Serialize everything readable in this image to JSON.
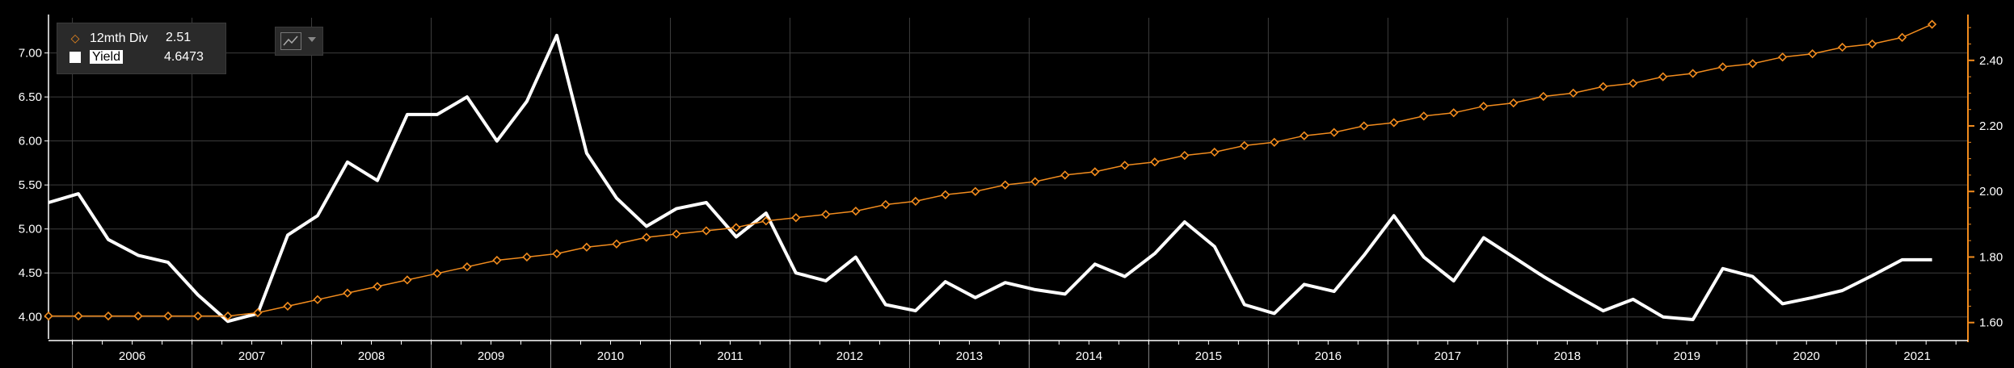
{
  "legend": {
    "div": {
      "label": "12mth Div",
      "value": "2.51"
    },
    "yield": {
      "label": "Yield",
      "value": "4.6473"
    }
  },
  "controls": {
    "icon": "line-chart-icon",
    "menu_icon": "chevron-down-icon"
  },
  "colors": {
    "div": "#f28c1e",
    "yield": "#ffffff",
    "grid": "#3d3d3d",
    "axis": "#ffffff",
    "bg": "#000000"
  },
  "chart_data": {
    "type": "line",
    "x_axis": {
      "range": [
        2005.8,
        2021.85
      ],
      "tick_labels": [
        "2006",
        "2007",
        "2008",
        "2009",
        "2010",
        "2011",
        "2012",
        "2013",
        "2014",
        "2015",
        "2016",
        "2017",
        "2018",
        "2019",
        "2020",
        "2021"
      ]
    },
    "left_axis": {
      "range": [
        3.75,
        7.4
      ],
      "ticks": [
        "4.00",
        "4.50",
        "5.00",
        "5.50",
        "6.00",
        "6.50",
        "7.00"
      ]
    },
    "right_axis": {
      "range": [
        1.55,
        2.53
      ],
      "ticks": [
        "1.60",
        "1.80",
        "2.00",
        "2.20",
        "2.40"
      ]
    },
    "grid": true,
    "legend_position": "top-left",
    "series": [
      {
        "name": "Yield",
        "axis": "left",
        "x": [
          2005.8,
          2006.05,
          2006.3,
          2006.55,
          2006.8,
          2007.05,
          2007.3,
          2007.55,
          2007.8,
          2008.05,
          2008.3,
          2008.55,
          2008.8,
          2009.05,
          2009.3,
          2009.55,
          2009.8,
          2010.05,
          2010.3,
          2010.55,
          2010.8,
          2011.05,
          2011.3,
          2011.55,
          2011.8,
          2012.05,
          2012.3,
          2012.55,
          2012.8,
          2013.05,
          2013.3,
          2013.55,
          2013.8,
          2014.05,
          2014.3,
          2014.55,
          2014.8,
          2015.05,
          2015.3,
          2015.55,
          2015.8,
          2016.05,
          2016.3,
          2016.55,
          2016.8,
          2017.05,
          2017.3,
          2017.55,
          2017.8,
          2018.05,
          2018.3,
          2018.55,
          2018.8,
          2019.05,
          2019.3,
          2019.55,
          2019.8,
          2020.05,
          2020.3,
          2020.55,
          2020.8,
          2021.05,
          2021.3,
          2021.55
        ],
        "values": [
          5.3,
          5.4,
          4.88,
          4.7,
          4.62,
          4.25,
          3.95,
          4.04,
          4.93,
          5.15,
          5.76,
          5.55,
          6.3,
          6.3,
          6.5,
          6.0,
          6.45,
          7.2,
          5.86,
          5.35,
          5.03,
          5.23,
          5.3,
          4.91,
          5.18,
          4.5,
          4.41,
          4.68,
          4.14,
          4.07,
          4.4,
          4.22,
          4.39,
          4.31,
          4.26,
          4.6,
          4.46,
          4.72,
          5.08,
          4.8,
          4.14,
          4.04,
          4.37,
          4.29,
          4.7,
          5.15,
          4.68,
          4.41,
          4.9,
          4.68,
          4.46,
          4.26,
          4.07,
          4.2,
          4.0,
          3.97,
          4.55,
          4.46,
          4.15,
          4.22,
          4.3,
          4.47,
          4.65,
          4.65
        ]
      },
      {
        "name": "12mth Div",
        "axis": "right",
        "x": [
          2005.8,
          2006.05,
          2006.3,
          2006.55,
          2006.8,
          2007.05,
          2007.3,
          2007.55,
          2007.8,
          2008.05,
          2008.3,
          2008.55,
          2008.8,
          2009.05,
          2009.3,
          2009.55,
          2009.8,
          2010.05,
          2010.3,
          2010.55,
          2010.8,
          2011.05,
          2011.3,
          2011.55,
          2011.8,
          2012.05,
          2012.3,
          2012.55,
          2012.8,
          2013.05,
          2013.3,
          2013.55,
          2013.8,
          2014.05,
          2014.3,
          2014.55,
          2014.8,
          2015.05,
          2015.3,
          2015.55,
          2015.8,
          2016.05,
          2016.3,
          2016.55,
          2016.8,
          2017.05,
          2017.3,
          2017.55,
          2017.8,
          2018.05,
          2018.3,
          2018.55,
          2018.8,
          2019.05,
          2019.3,
          2019.55,
          2019.8,
          2020.05,
          2020.3,
          2020.55,
          2020.8,
          2021.05,
          2021.3,
          2021.55
        ],
        "values": [
          1.62,
          1.62,
          1.62,
          1.62,
          1.62,
          1.62,
          1.62,
          1.63,
          1.65,
          1.67,
          1.69,
          1.71,
          1.73,
          1.75,
          1.77,
          1.79,
          1.8,
          1.81,
          1.83,
          1.84,
          1.86,
          1.87,
          1.88,
          1.89,
          1.91,
          1.92,
          1.93,
          1.94,
          1.96,
          1.97,
          1.99,
          2.0,
          2.02,
          2.03,
          2.05,
          2.06,
          2.08,
          2.09,
          2.11,
          2.12,
          2.14,
          2.15,
          2.17,
          2.18,
          2.2,
          2.21,
          2.23,
          2.24,
          2.26,
          2.27,
          2.29,
          2.3,
          2.32,
          2.33,
          2.35,
          2.36,
          2.38,
          2.39,
          2.41,
          2.42,
          2.44,
          2.45,
          2.47,
          2.51
        ]
      }
    ]
  }
}
